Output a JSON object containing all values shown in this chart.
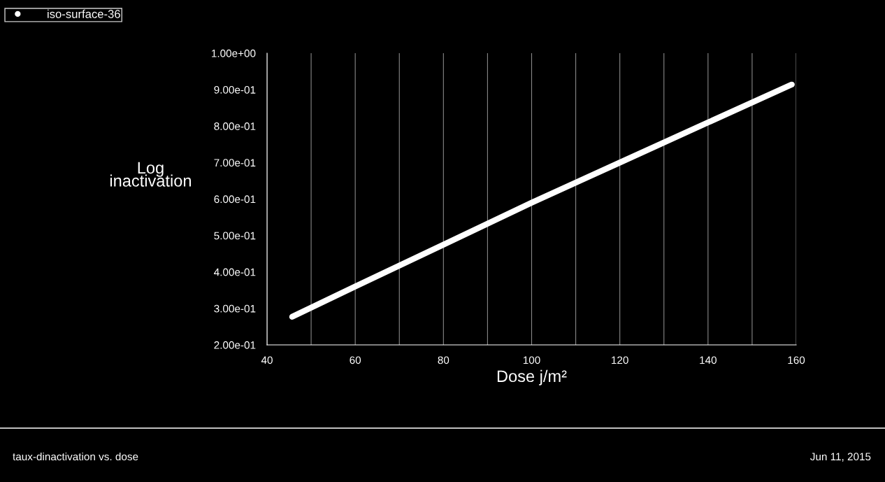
{
  "chart_data": {
    "type": "line",
    "xlabel": "Dose j/m²",
    "ylabel": "Log\ninactivation",
    "series": [
      {
        "name": "iso-surface-36",
        "color": "#ffffff",
        "x": [
          45.7,
          60,
          80,
          100,
          120,
          140,
          159
        ],
        "values": [
          0.277,
          0.36,
          0.475,
          0.59,
          0.7,
          0.81,
          0.914
        ]
      }
    ],
    "xlim": [
      40,
      160
    ],
    "xticks": [
      40,
      {
        "value": 50,
        "label": null
      },
      60,
      {
        "value": 70,
        "label": null
      },
      80,
      {
        "value": 90,
        "label": null
      },
      100,
      {
        "value": 110,
        "label": null
      },
      120,
      {
        "value": 130,
        "label": null
      },
      140,
      {
        "value": 150,
        "label": null
      },
      160
    ],
    "ylim": [
      0.2,
      1.0
    ],
    "yticks": [
      {
        "value": 0.2,
        "label": "2.00e-01"
      },
      {
        "value": 0.3,
        "label": "3.00e-01"
      },
      {
        "value": 0.4,
        "label": "4.00e-01"
      },
      {
        "value": 0.5,
        "label": "5.00e-01"
      },
      {
        "value": 0.6,
        "label": "6.00e-01"
      },
      {
        "value": 0.7,
        "label": "7.00e-01"
      },
      {
        "value": 0.8,
        "label": "8.00e-01"
      },
      {
        "value": 0.9,
        "label": "9.00e-01"
      },
      {
        "value": 1.0,
        "label": "1.00e+00"
      }
    ],
    "grid": "x",
    "legend": "top left",
    "annotations": [
      "taux-dinactivation vs. dose",
      "Jun 11, 2015"
    ]
  }
}
